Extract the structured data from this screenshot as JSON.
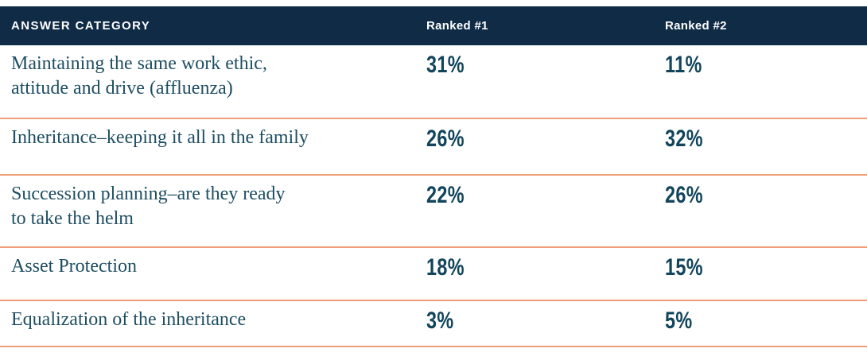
{
  "colors": {
    "header_bg": "#0f2b45",
    "header_text": "#ffffff",
    "category_text": "#1e4e62",
    "value_text": "#12455c",
    "row_divider": "#f09e77"
  },
  "table": {
    "headers": {
      "category": "ANSWER CATEGORY",
      "ranked1": "Ranked #1",
      "ranked2": "Ranked #2"
    },
    "rows": [
      {
        "category": "Maintaining the same work ethic,\nattitude and drive (affluenza)",
        "ranked1": "31%",
        "ranked2": "11%"
      },
      {
        "category": "Inheritance–keeping it all in the family",
        "ranked1": "26%",
        "ranked2": "32%"
      },
      {
        "category": "Succession planning–are they ready\nto take the helm",
        "ranked1": "22%",
        "ranked2": "26%"
      },
      {
        "category": "Asset Protection",
        "ranked1": "18%",
        "ranked2": "15%"
      },
      {
        "category": "Equalization of the inheritance",
        "ranked1": "3%",
        "ranked2": "5%"
      }
    ]
  },
  "chart_data": {
    "type": "table",
    "title": "",
    "columns": [
      "ANSWER CATEGORY",
      "Ranked #1",
      "Ranked #2"
    ],
    "categories": [
      "Maintaining the same work ethic, attitude and drive (affluenza)",
      "Inheritance–keeping it all in the family",
      "Succession planning–are they ready to take the helm",
      "Asset Protection",
      "Equalization of the inheritance"
    ],
    "series": [
      {
        "name": "Ranked #1",
        "values": [
          31,
          26,
          22,
          18,
          3
        ]
      },
      {
        "name": "Ranked #2",
        "values": [
          11,
          32,
          26,
          15,
          5
        ]
      }
    ]
  }
}
